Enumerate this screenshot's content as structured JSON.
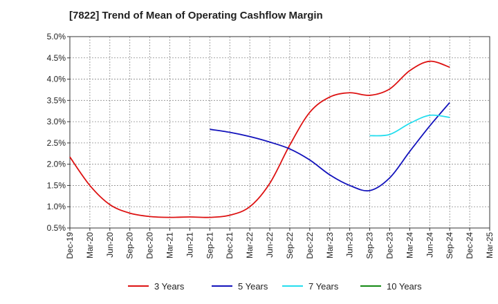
{
  "chart_data": {
    "type": "line",
    "title": "[7822]  Trend of Mean of Operating Cashflow Margin",
    "xlabel": "",
    "ylabel": "",
    "x_ticks": [
      "Dec-19",
      "Mar-20",
      "Jun-20",
      "Sep-20",
      "Dec-20",
      "Mar-21",
      "Jun-21",
      "Sep-21",
      "Dec-21",
      "Mar-22",
      "Jun-22",
      "Sep-22",
      "Dec-22",
      "Mar-23",
      "Jun-23",
      "Sep-23",
      "Dec-23",
      "Mar-24",
      "Jun-24",
      "Sep-24",
      "Dec-24",
      "Mar-25"
    ],
    "y_ticks": [
      "0.5%",
      "1.0%",
      "1.5%",
      "2.0%",
      "2.5%",
      "3.0%",
      "3.5%",
      "4.0%",
      "4.5%",
      "5.0%"
    ],
    "ylim": [
      0.5,
      5.0
    ],
    "grid": true,
    "legend_position": "bottom",
    "series": [
      {
        "name": "3 Years",
        "color": "#dd1111",
        "values": [
          2.17,
          1.5,
          1.05,
          0.85,
          0.77,
          0.75,
          0.76,
          0.75,
          0.8,
          1.0,
          1.55,
          2.45,
          3.22,
          3.58,
          3.68,
          3.62,
          3.77,
          4.2,
          4.42,
          4.28,
          null,
          null
        ]
      },
      {
        "name": "5 Years",
        "color": "#1111bb",
        "values": [
          null,
          null,
          null,
          null,
          null,
          null,
          null,
          2.82,
          2.75,
          2.65,
          2.52,
          2.36,
          2.1,
          1.75,
          1.5,
          1.38,
          1.68,
          2.3,
          2.9,
          3.45,
          null,
          null
        ]
      },
      {
        "name": "7 Years",
        "color": "#22ddee",
        "values": [
          null,
          null,
          null,
          null,
          null,
          null,
          null,
          null,
          null,
          null,
          null,
          null,
          null,
          null,
          null,
          2.67,
          2.7,
          2.96,
          3.15,
          3.1,
          null,
          null
        ]
      },
      {
        "name": "10 Years",
        "color": "#118811",
        "values": [
          null,
          null,
          null,
          null,
          null,
          null,
          null,
          null,
          null,
          null,
          null,
          null,
          null,
          null,
          null,
          null,
          null,
          null,
          null,
          null,
          null,
          null
        ]
      }
    ]
  }
}
